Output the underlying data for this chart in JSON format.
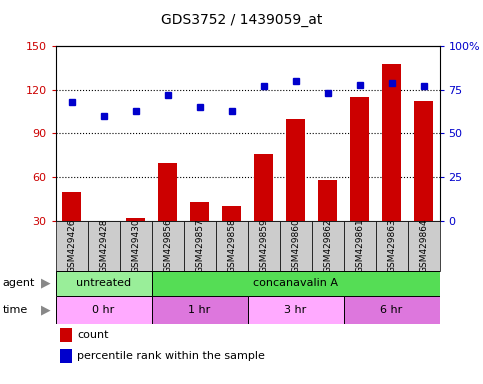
{
  "title": "GDS3752 / 1439059_at",
  "samples": [
    "GSM429426",
    "GSM429428",
    "GSM429430",
    "GSM429856",
    "GSM429857",
    "GSM429858",
    "GSM429859",
    "GSM429860",
    "GSM429862",
    "GSM429861",
    "GSM429863",
    "GSM429864"
  ],
  "counts": [
    50,
    30,
    32,
    70,
    43,
    40,
    76,
    100,
    58,
    115,
    138,
    112
  ],
  "percentile": [
    68,
    60,
    63,
    72,
    65,
    63,
    77,
    80,
    73,
    78,
    79,
    77
  ],
  "bar_color": "#cc0000",
  "dot_color": "#0000cc",
  "left_ylim": [
    30,
    150
  ],
  "left_yticks": [
    30,
    60,
    90,
    120,
    150
  ],
  "right_ylim": [
    0,
    100
  ],
  "right_yticks": [
    0,
    25,
    50,
    75,
    100
  ],
  "right_yticklabels": [
    "0",
    "25",
    "50",
    "75",
    "100%"
  ],
  "agent_groups": [
    {
      "label": "untreated",
      "start": 0,
      "end": 3,
      "color": "#99ee99"
    },
    {
      "label": "concanavalin A",
      "start": 3,
      "end": 12,
      "color": "#55dd55"
    }
  ],
  "time_groups": [
    {
      "label": "0 hr",
      "start": 0,
      "end": 3,
      "color": "#ffaaff"
    },
    {
      "label": "1 hr",
      "start": 3,
      "end": 6,
      "color": "#dd77dd"
    },
    {
      "label": "3 hr",
      "start": 6,
      "end": 9,
      "color": "#ffaaff"
    },
    {
      "label": "6 hr",
      "start": 9,
      "end": 12,
      "color": "#dd77dd"
    }
  ],
  "legend_items": [
    {
      "label": "count",
      "color": "#cc0000"
    },
    {
      "label": "percentile rank within the sample",
      "color": "#0000cc"
    }
  ],
  "bg_color": "#ffffff",
  "tick_label_color_left": "#cc0000",
  "tick_label_color_right": "#0000cc",
  "sample_box_color": "#cccccc",
  "grid_yticks": [
    60,
    90,
    120
  ]
}
